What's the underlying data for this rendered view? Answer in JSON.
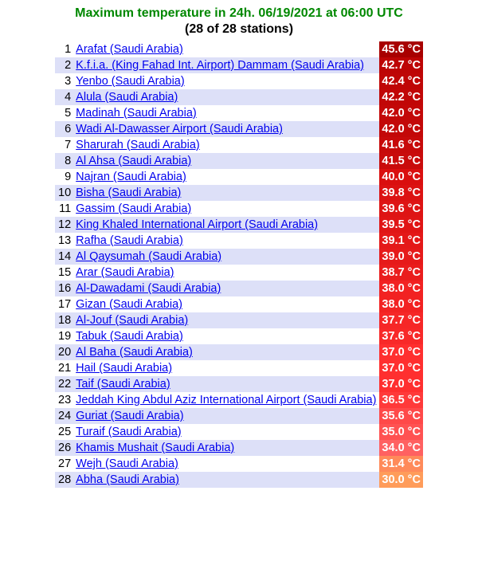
{
  "header": {
    "title": "Maximum temperature in 24h. 06/19/2021 at 06:00 UTC",
    "title_color": "#008800",
    "subtitle": "(28 of 28 stations)"
  },
  "table": {
    "row_bg_odd": "#ffffff",
    "row_bg_even": "#dde0f8",
    "link_color": "#0000ee",
    "temp_text_color": "#ffffff",
    "rows": [
      {
        "rank": 1,
        "station": "Arafat (Saudi Arabia)",
        "temp": "45.6 °C",
        "temp_bg": "#a80000"
      },
      {
        "rank": 2,
        "station": "K.f.i.a. (King Fahad Int. Airport) Dammam (Saudi Arabia)",
        "temp": "42.7 °C",
        "temp_bg": "#bd0505"
      },
      {
        "rank": 3,
        "station": "Yenbo (Saudi Arabia)",
        "temp": "42.4 °C",
        "temp_bg": "#bf0606"
      },
      {
        "rank": 4,
        "station": "Alula (Saudi Arabia)",
        "temp": "42.2 °C",
        "temp_bg": "#c10707"
      },
      {
        "rank": 5,
        "station": "Madinah (Saudi Arabia)",
        "temp": "42.0 °C",
        "temp_bg": "#c30808"
      },
      {
        "rank": 6,
        "station": "Wadi Al-Dawasser Airport (Saudi Arabia)",
        "temp": "42.0 °C",
        "temp_bg": "#c30808"
      },
      {
        "rank": 7,
        "station": "Sharurah (Saudi Arabia)",
        "temp": "41.6 °C",
        "temp_bg": "#c70a0a"
      },
      {
        "rank": 8,
        "station": "Al Ahsa (Saudi Arabia)",
        "temp": "41.5 °C",
        "temp_bg": "#c90b0b"
      },
      {
        "rank": 9,
        "station": "Najran (Saudi Arabia)",
        "temp": "40.0 °C",
        "temp_bg": "#da0f0f"
      },
      {
        "rank": 10,
        "station": "Bisha (Saudi Arabia)",
        "temp": "39.8 °C",
        "temp_bg": "#dc1212"
      },
      {
        "rank": 11,
        "station": "Gassim (Saudi Arabia)",
        "temp": "39.6 °C",
        "temp_bg": "#de1414"
      },
      {
        "rank": 12,
        "station": "King Khaled International Airport (Saudi Arabia)",
        "temp": "39.5 °C",
        "temp_bg": "#e01515"
      },
      {
        "rank": 13,
        "station": "Rafha (Saudi Arabia)",
        "temp": "39.1 °C",
        "temp_bg": "#e41818"
      },
      {
        "rank": 14,
        "station": "Al Qaysumah (Saudi Arabia)",
        "temp": "39.0 °C",
        "temp_bg": "#e61a1a"
      },
      {
        "rank": 15,
        "station": "Arar (Saudi Arabia)",
        "temp": "38.7 °C",
        "temp_bg": "#ea1d1d"
      },
      {
        "rank": 16,
        "station": "Al-Dawadami (Saudi Arabia)",
        "temp": "38.0 °C",
        "temp_bg": "#f22222"
      },
      {
        "rank": 17,
        "station": "Gizan (Saudi Arabia)",
        "temp": "38.0 °C",
        "temp_bg": "#f22222"
      },
      {
        "rank": 18,
        "station": "Al-Jouf (Saudi Arabia)",
        "temp": "37.7 °C",
        "temp_bg": "#f62727"
      },
      {
        "rank": 19,
        "station": "Tabuk (Saudi Arabia)",
        "temp": "37.6 °C",
        "temp_bg": "#f82929"
      },
      {
        "rank": 20,
        "station": "Al Baha (Saudi Arabia)",
        "temp": "37.0 °C",
        "temp_bg": "#ff2f2f"
      },
      {
        "rank": 21,
        "station": "Hail (Saudi Arabia)",
        "temp": "37.0 °C",
        "temp_bg": "#ff2f2f"
      },
      {
        "rank": 22,
        "station": "Taif (Saudi Arabia)",
        "temp": "37.0 °C",
        "temp_bg": "#ff2f2f"
      },
      {
        "rank": 23,
        "station": "Jeddah King Abdul Aziz International Airport (Saudi Arabia)",
        "temp": "36.5 °C",
        "temp_bg": "#ff3a3a"
      },
      {
        "rank": 24,
        "station": "Guriat (Saudi Arabia)",
        "temp": "35.6 °C",
        "temp_bg": "#ff4949"
      },
      {
        "rank": 25,
        "station": "Turaif (Saudi Arabia)",
        "temp": "35.0 °C",
        "temp_bg": "#ff5252"
      },
      {
        "rank": 26,
        "station": "Khamis Mushait (Saudi Arabia)",
        "temp": "34.0 °C",
        "temp_bg": "#ff6161"
      },
      {
        "rank": 27,
        "station": "Wejh (Saudi Arabia)",
        "temp": "31.4 °C",
        "temp_bg": "#ff8a5a"
      },
      {
        "rank": 28,
        "station": "Abha (Saudi Arabia)",
        "temp": "30.0 °C",
        "temp_bg": "#ff9c5a"
      }
    ]
  }
}
